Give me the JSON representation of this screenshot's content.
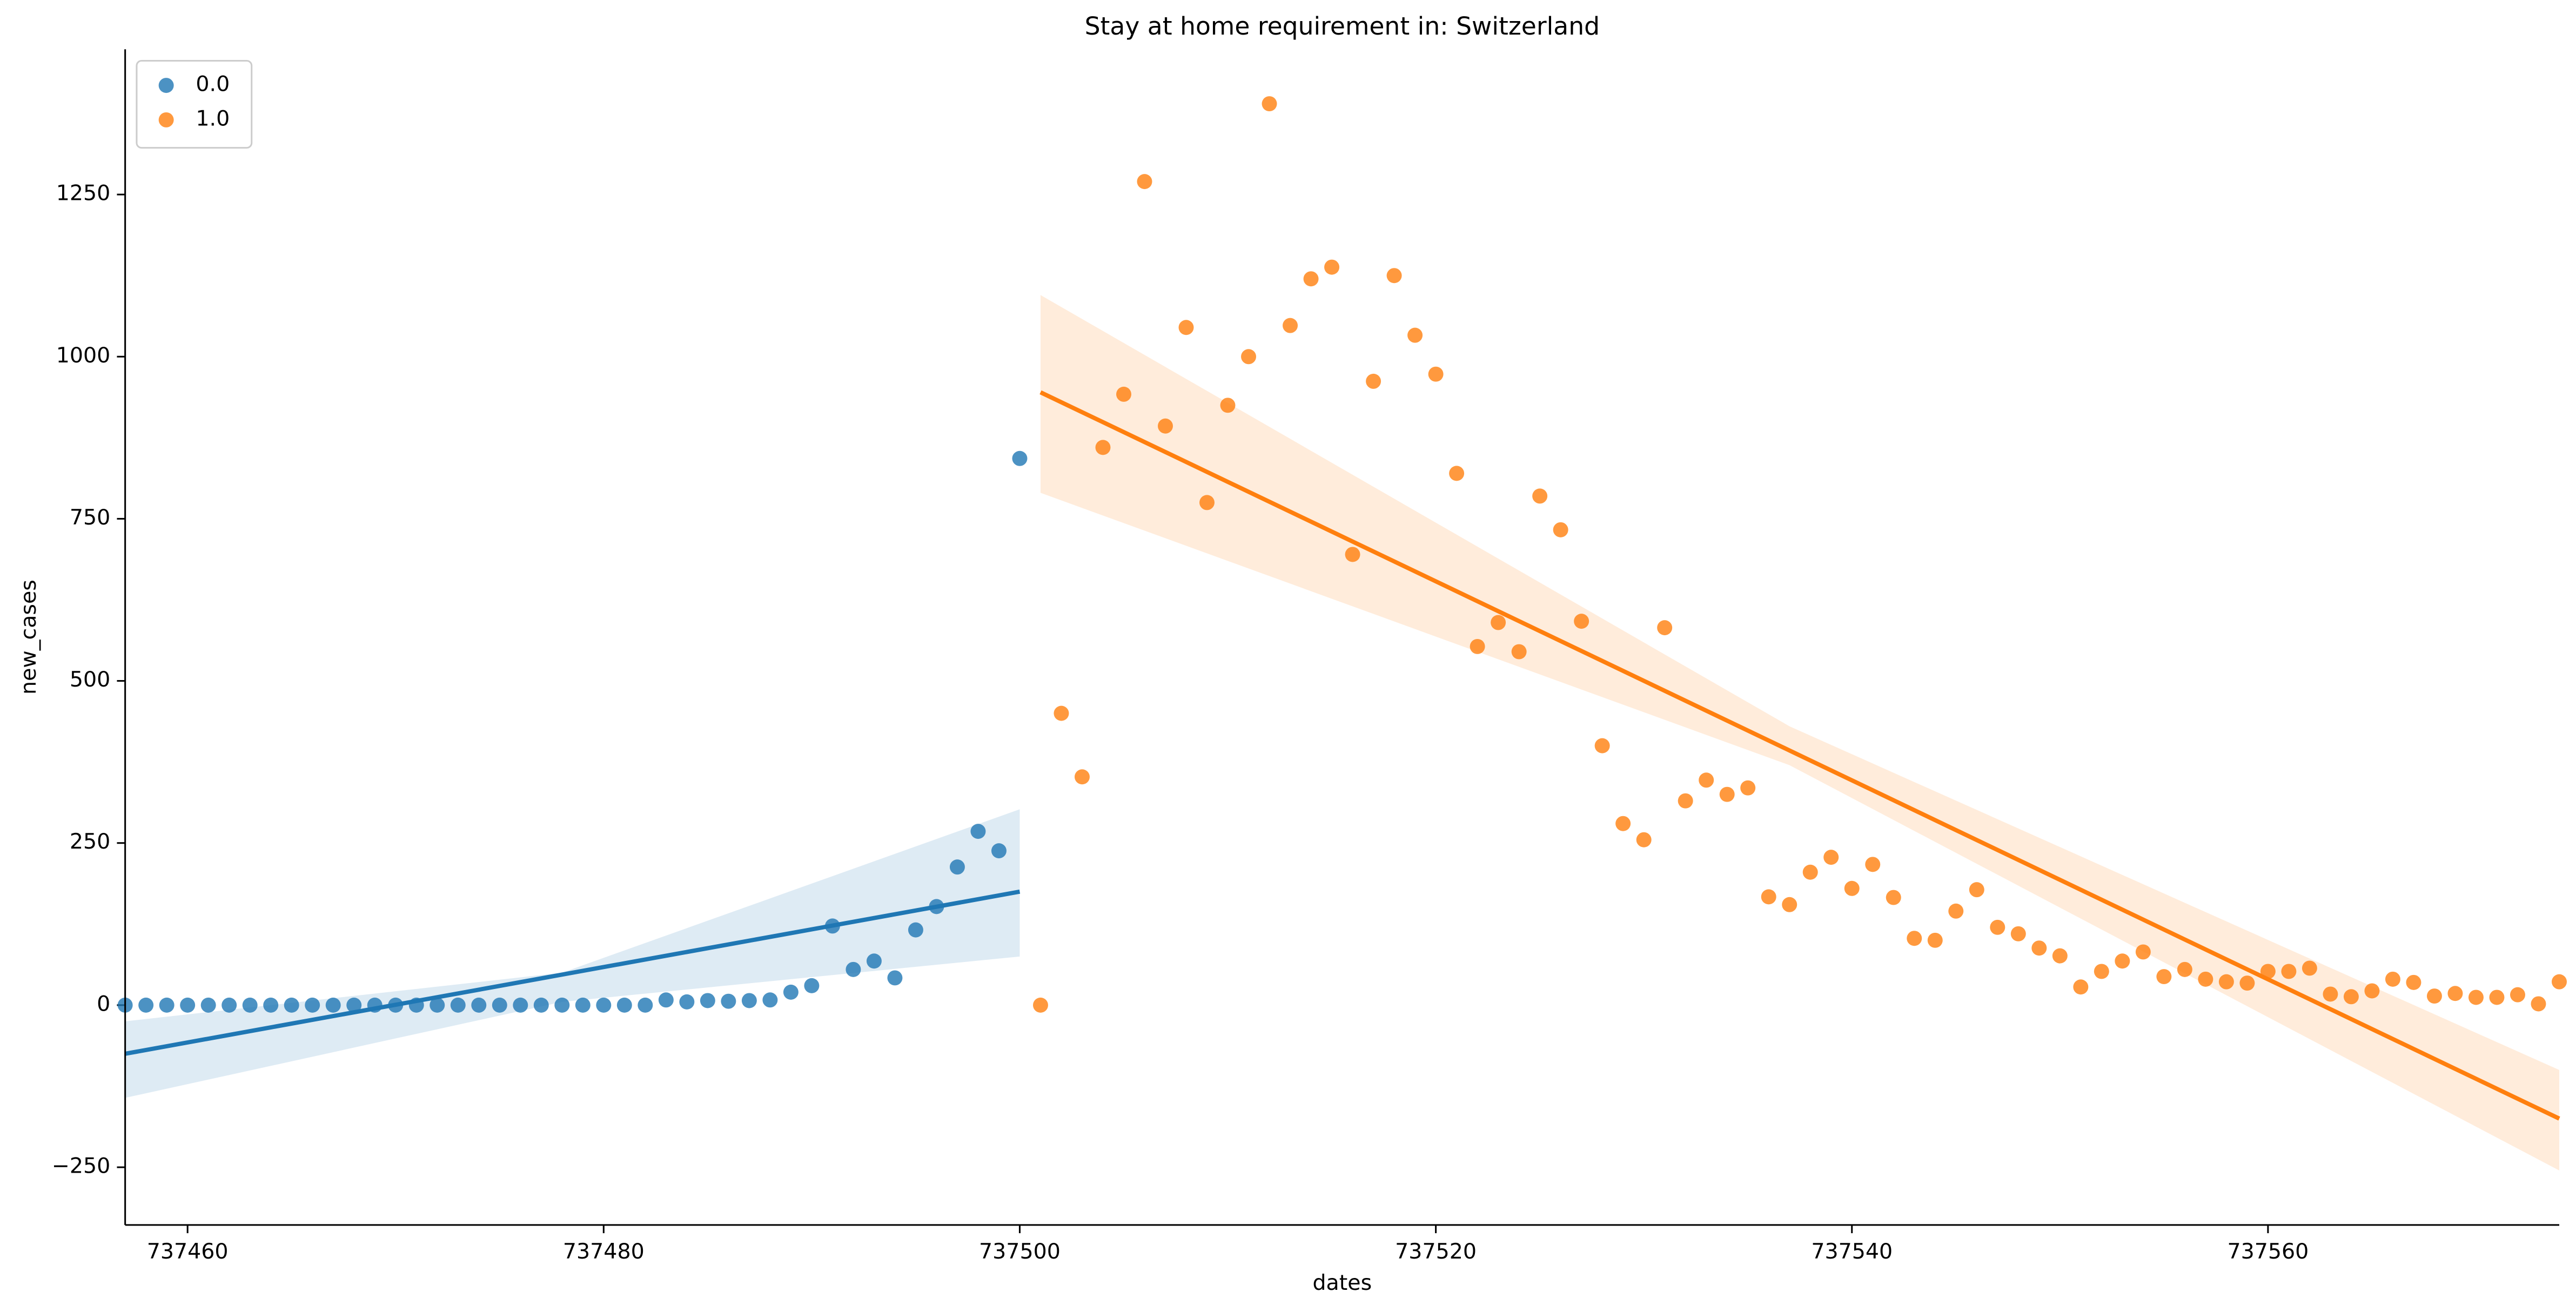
{
  "chart_data": {
    "type": "scatter",
    "title": "Stay at home requirement in: Switzerland",
    "x_label": "dates",
    "y_label": "new_cases",
    "xlim": [
      737457,
      737574
    ],
    "ylim": [
      -339,
      1474
    ],
    "xticks": [
      737460,
      737480,
      737500,
      737520,
      737540,
      737560
    ],
    "yticks": [
      {
        "value": -250,
        "label": "−250"
      },
      0,
      250,
      500,
      750,
      1000,
      1250
    ],
    "legend": "upper left",
    "series": [
      {
        "name": "0.0",
        "color": "#1f77b4",
        "x": [
          737457,
          737458,
          737459,
          737460,
          737461,
          737462,
          737463,
          737464,
          737465,
          737466,
          737467,
          737468,
          737469,
          737470,
          737471,
          737472,
          737473,
          737474,
          737475,
          737476,
          737477,
          737478,
          737479,
          737480,
          737481,
          737482,
          737483,
          737484,
          737485,
          737486,
          737487,
          737488,
          737489,
          737490,
          737491,
          737492,
          737493,
          737494,
          737495,
          737496,
          737497,
          737498,
          737499,
          737500
        ],
        "values": [
          0,
          0,
          0,
          0,
          0,
          0,
          0,
          0,
          0,
          0,
          0,
          0,
          0,
          0,
          0,
          0,
          0,
          0,
          0,
          0,
          0,
          0,
          0,
          0,
          0,
          0,
          8,
          5,
          7,
          6,
          7,
          8,
          20,
          30,
          122,
          55,
          68,
          42,
          116,
          152,
          213,
          268,
          238,
          843
        ],
        "fit": {
          "x": [
            737457,
            737500
          ],
          "y": [
            -75,
            175
          ]
        },
        "ci": {
          "x": [
            737457,
            737478,
            737500
          ],
          "lower": [
            -143,
            5,
            75
          ],
          "upper": [
            -25,
            50,
            302
          ]
        }
      },
      {
        "name": "1.0",
        "color": "#ff7f0e",
        "x": [
          737501,
          737502,
          737503,
          737504,
          737505,
          737506,
          737507,
          737508,
          737509,
          737510,
          737511,
          737512,
          737513,
          737514,
          737515,
          737516,
          737517,
          737518,
          737519,
          737520,
          737521,
          737522,
          737523,
          737524,
          737525,
          737526,
          737527,
          737528,
          737529,
          737530,
          737531,
          737532,
          737533,
          737534,
          737535,
          737536,
          737537,
          737538,
          737539,
          737540,
          737541,
          737542,
          737543,
          737544,
          737545,
          737546,
          737547,
          737548,
          737549,
          737550,
          737551,
          737552,
          737553,
          737554,
          737555,
          737556,
          737557,
          737558,
          737559,
          737560,
          737561,
          737562,
          737563,
          737564,
          737565,
          737566,
          737567,
          737568,
          737569,
          737570,
          737571,
          737572,
          737573,
          737574
        ],
        "values": [
          0,
          450,
          352,
          860,
          942,
          1270,
          893,
          1045,
          775,
          925,
          1000,
          1390,
          1048,
          1120,
          1138,
          695,
          962,
          1125,
          1033,
          973,
          820,
          553,
          590,
          545,
          785,
          733,
          592,
          400,
          280,
          255,
          582,
          315,
          347,
          325,
          335,
          167,
          155,
          205,
          228,
          180,
          217,
          166,
          103,
          100,
          145,
          178,
          120,
          110,
          88,
          76,
          28,
          52,
          68,
          82,
          44,
          55,
          40,
          36,
          34,
          52,
          52,
          57,
          17,
          13,
          22,
          40,
          35,
          14,
          18,
          12,
          12,
          16,
          2,
          36
        ],
        "fit": {
          "x": [
            737501,
            737574
          ],
          "y": [
            945,
            -175
          ]
        },
        "ci": {
          "x": [
            737501,
            737537,
            737574
          ],
          "lower": [
            790,
            370,
            -255
          ],
          "upper": [
            1095,
            430,
            -100
          ]
        }
      }
    ]
  }
}
